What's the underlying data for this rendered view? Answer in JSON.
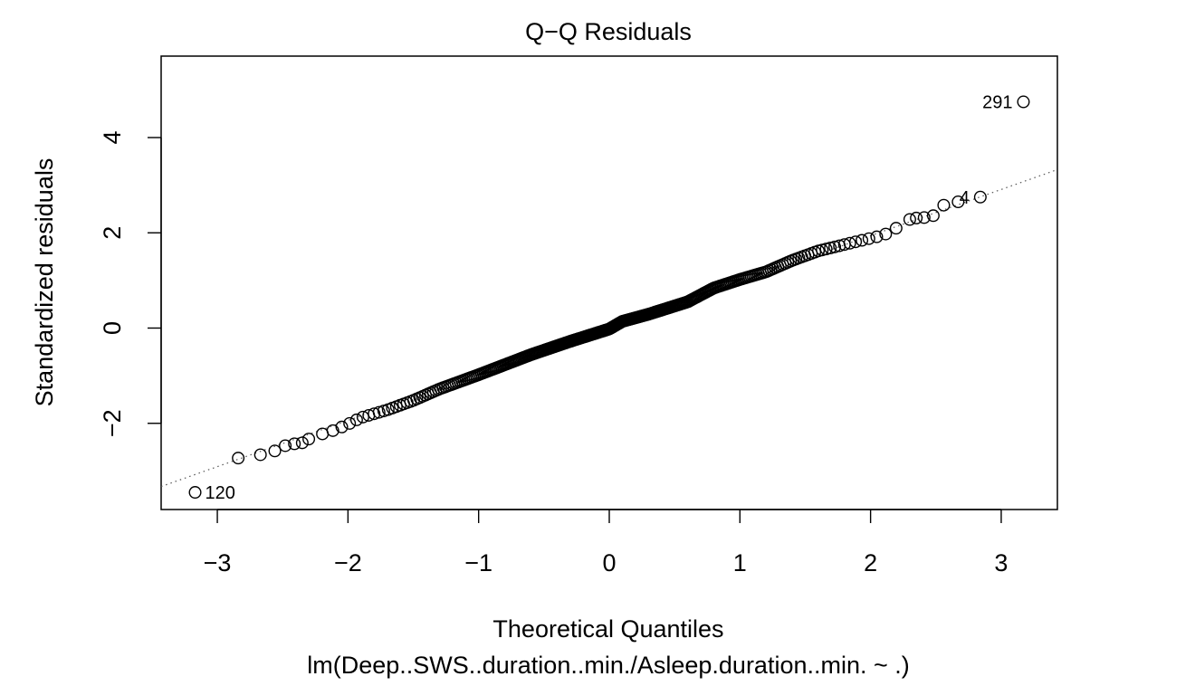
{
  "chart_data": {
    "type": "scatter",
    "title": "Q−Q Residuals",
    "xlabel": "Theoretical Quantiles",
    "sublabel": "lm(Deep..SWS..duration..min./Asleep.duration..min. ~ .)",
    "ylabel": "Standardized residuals",
    "xlim": [
      -3.43,
      3.43
    ],
    "ylim": [
      -3.81,
      5.71
    ],
    "x_ticks": [
      -3,
      -2,
      -1,
      0,
      1,
      2,
      3
    ],
    "x_tick_labels": [
      "−3",
      "−2",
      "−1",
      "0",
      "1",
      "2",
      "3"
    ],
    "y_ticks": [
      -2,
      0,
      2,
      4
    ],
    "y_tick_labels": [
      "−2",
      "0",
      "2",
      "4"
    ],
    "reference_line": {
      "slope": 0.97,
      "intercept": 0.0,
      "style": "dotted"
    },
    "n_points": 320,
    "point_shape": "open-circle",
    "grid": false,
    "labeled_points": [
      {
        "label": "291",
        "x": 3.17,
        "y": 4.75
      },
      {
        "label": "4",
        "x": 2.84,
        "y": 2.75
      },
      {
        "label": "120",
        "x": -3.17,
        "y": -3.45
      }
    ],
    "extreme_points": [
      {
        "x": -3.17,
        "y": -3.45
      },
      {
        "x": -2.84,
        "y": -2.73
      },
      {
        "x": -2.67,
        "y": -2.66
      },
      {
        "x": -2.56,
        "y": -2.58
      },
      {
        "x": -2.48,
        "y": -2.47
      },
      {
        "x": -2.41,
        "y": -2.43
      },
      {
        "x": -2.35,
        "y": -2.41
      },
      {
        "x": -2.3,
        "y": -2.33
      },
      {
        "x": 2.3,
        "y": 2.28
      },
      {
        "x": 2.35,
        "y": 2.31
      },
      {
        "x": 2.41,
        "y": 2.32
      },
      {
        "x": 2.48,
        "y": 2.36
      },
      {
        "x": 2.56,
        "y": 2.58
      },
      {
        "x": 2.67,
        "y": 2.65
      },
      {
        "x": 2.84,
        "y": 2.75
      },
      {
        "x": 3.17,
        "y": 4.75
      }
    ],
    "body_curve": [
      [
        -2.25,
        -2.27
      ],
      [
        -2.1,
        -2.14
      ],
      [
        -2.0,
        -2.02
      ],
      [
        -1.9,
        -1.88
      ],
      [
        -1.7,
        -1.72
      ],
      [
        -1.5,
        -1.52
      ],
      [
        -1.3,
        -1.28
      ],
      [
        -1.0,
        -0.98
      ],
      [
        -0.6,
        -0.56
      ],
      [
        -0.3,
        -0.28
      ],
      [
        0.0,
        -0.02
      ],
      [
        0.1,
        0.14
      ],
      [
        0.3,
        0.29
      ],
      [
        0.6,
        0.55
      ],
      [
        0.8,
        0.84
      ],
      [
        1.0,
        1.02
      ],
      [
        1.2,
        1.18
      ],
      [
        1.4,
        1.42
      ],
      [
        1.6,
        1.62
      ],
      [
        1.9,
        1.82
      ],
      [
        2.1,
        1.95
      ],
      [
        2.25,
        2.18
      ]
    ]
  }
}
